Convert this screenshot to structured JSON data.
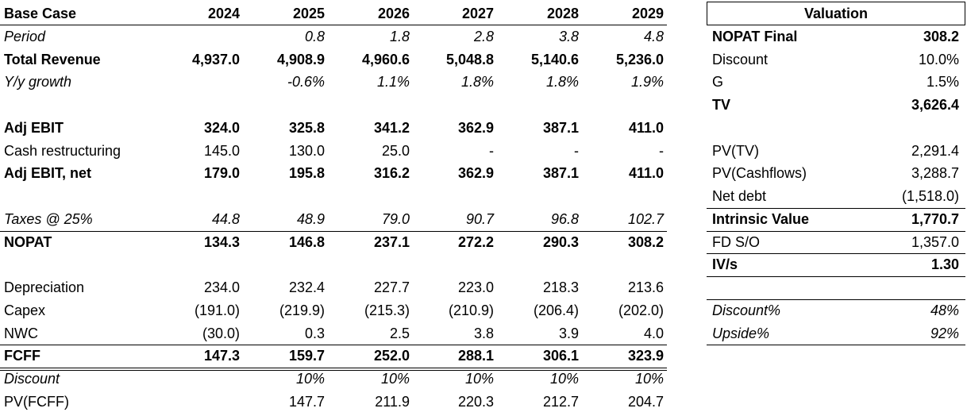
{
  "base_case": {
    "header": {
      "label": "Base Case",
      "years": [
        "2024",
        "2025",
        "2026",
        "2027",
        "2028",
        "2029"
      ]
    },
    "sections": [
      {
        "rows": [
          {
            "label": "Period",
            "cells": [
              null,
              "0.8",
              "1.8",
              "2.8",
              "3.8",
              "4.8"
            ]
          },
          {
            "label": "Total Revenue",
            "cells": [
              "4,937.0",
              "4,908.9",
              "4,960.6",
              "5,048.8",
              "5,140.6",
              "5,236.0"
            ]
          },
          {
            "label": "Y/y growth",
            "cells": [
              null,
              "-0.6%",
              "1.1%",
              "1.8%",
              "1.8%",
              "1.9%"
            ]
          }
        ]
      },
      {
        "rows": [
          {
            "label": "Adj EBIT",
            "cells": [
              "324.0",
              "325.8",
              "341.2",
              "362.9",
              "387.1",
              "411.0"
            ]
          },
          {
            "label": "Cash restructuring",
            "cells": [
              "145.0",
              "130.0",
              "25.0",
              "-",
              "-",
              "-"
            ]
          },
          {
            "label": "Adj EBIT, net",
            "cells": [
              "179.0",
              "195.8",
              "316.2",
              "362.9",
              "387.1",
              "411.0"
            ]
          }
        ]
      },
      {
        "rows": [
          {
            "label": "Taxes @ 25%",
            "cells": [
              "44.8",
              "48.9",
              "79.0",
              "90.7",
              "96.8",
              "102.7"
            ]
          },
          {
            "label": "NOPAT",
            "cells": [
              "134.3",
              "146.8",
              "237.1",
              "272.2",
              "290.3",
              "308.2"
            ]
          }
        ]
      },
      {
        "rows": [
          {
            "label": "Depreciation",
            "cells": [
              "234.0",
              "232.4",
              "227.7",
              "223.0",
              "218.3",
              "213.6"
            ]
          },
          {
            "label": "Capex",
            "cells": [
              "(191.0)",
              "(219.9)",
              "(215.3)",
              "(210.9)",
              "(206.4)",
              "(202.0)"
            ]
          },
          {
            "label": "NWC",
            "cells": [
              "(30.0)",
              "0.3",
              "2.5",
              "3.8",
              "3.9",
              "4.0"
            ]
          },
          {
            "label": "FCFF",
            "cells": [
              "147.3",
              "159.7",
              "252.0",
              "288.1",
              "306.1",
              "323.9"
            ]
          },
          {
            "label": "Discount",
            "cells": [
              null,
              "10%",
              "10%",
              "10%",
              "10%",
              "10%"
            ]
          },
          {
            "label": "PV(FCFF)",
            "cells": [
              null,
              "147.7",
              "211.9",
              "220.3",
              "212.7",
              "204.7"
            ]
          }
        ]
      }
    ]
  },
  "valuation": {
    "title": "Valuation",
    "sections": [
      {
        "rows": [
          {
            "label": "NOPAT Final",
            "value": "308.2"
          },
          {
            "label": "Discount",
            "value": "10.0%"
          },
          {
            "label": "G",
            "value": "1.5%"
          },
          {
            "label": "TV",
            "value": "3,626.4"
          }
        ]
      },
      {
        "rows": [
          {
            "label": "PV(TV)",
            "value": "2,291.4"
          },
          {
            "label": "PV(Cashflows)",
            "value": "3,288.7"
          },
          {
            "label": "Net debt",
            "value": "(1,518.0)"
          },
          {
            "label": "Intrinsic Value",
            "value": "1,770.7"
          },
          {
            "label": "FD S/O",
            "value": "1,357.0"
          },
          {
            "label": "IV/s",
            "value": "1.30"
          }
        ]
      },
      {
        "rows": [
          {
            "label": "Discount%",
            "value": "48%"
          },
          {
            "label": "Upside%",
            "value": "92%"
          }
        ]
      }
    ]
  }
}
